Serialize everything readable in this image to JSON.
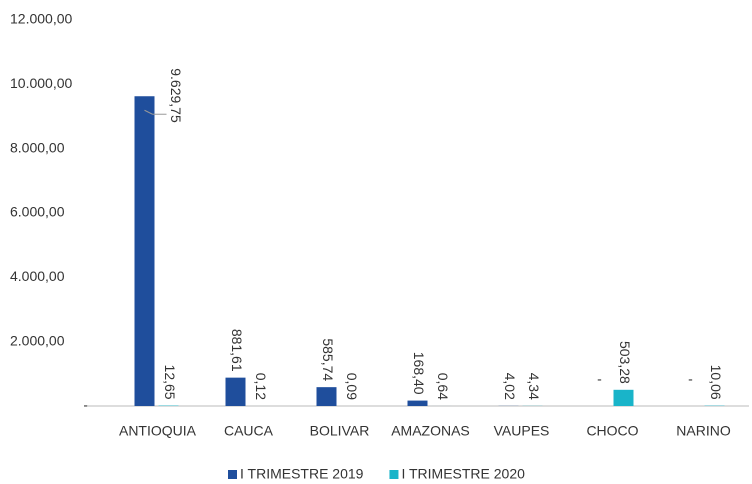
{
  "chart_data": {
    "type": "bar",
    "categories": [
      "ANTIOQUIA",
      "CAUCA",
      "BOLIVAR",
      "AMAZONAS",
      "VAUPES",
      "CHOCO",
      "NARINO"
    ],
    "series": [
      {
        "name": "I TRIMESTRE 2019",
        "color": "#1f4e9c",
        "values": [
          9629.75,
          881.61,
          585.74,
          168.4,
          4.02,
          0,
          0
        ],
        "value_labels": [
          "9.629,75",
          "881,61",
          "585,74",
          "168,40",
          "4,02",
          "-",
          "-"
        ]
      },
      {
        "name": "I TRIMESTRE 2020",
        "color": "#19b4c9",
        "values": [
          12.65,
          0.12,
          0.09,
          0.64,
          4.34,
          503.28,
          10.06
        ],
        "value_labels": [
          "12,65",
          "0,12",
          "0,09",
          "0,64",
          "4,34",
          "503,28",
          "10,06"
        ]
      }
    ],
    "ylim": [
      0,
      12000
    ],
    "yticks": [
      {
        "value": 0,
        "label": "-"
      },
      {
        "value": 2000,
        "label": "2.000,00"
      },
      {
        "value": 4000,
        "label": "4.000,00"
      },
      {
        "value": 6000,
        "label": "6.000,00"
      },
      {
        "value": 8000,
        "label": "8.000,00"
      },
      {
        "value": 10000,
        "label": "10.000,00"
      },
      {
        "value": 12000,
        "label": "12.000,00"
      }
    ],
    "grid": false,
    "legend": "bottom"
  }
}
